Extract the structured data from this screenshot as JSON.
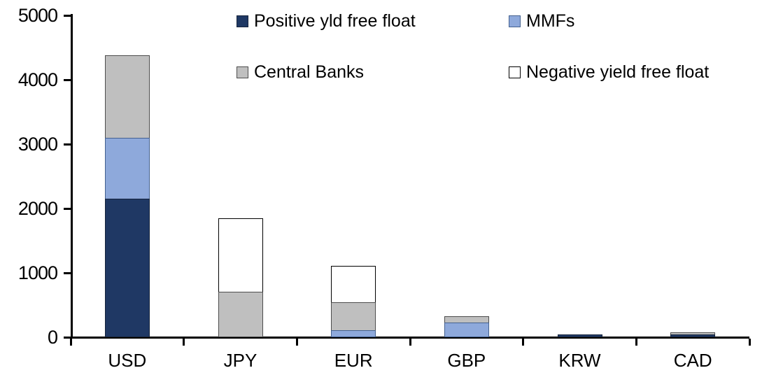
{
  "chart_data": {
    "type": "bar",
    "stacked": true,
    "title": "",
    "xlabel": "",
    "ylabel": "",
    "categories": [
      "USD",
      "JPY",
      "EUR",
      "GBP",
      "KRW",
      "CAD"
    ],
    "series": [
      {
        "name": "Positive yld free float",
        "color": "#1F3864",
        "border_color": "#16243C",
        "values": [
          2150,
          0,
          0,
          0,
          45,
          40
        ]
      },
      {
        "name": "MMFs",
        "color": "#8EA9DB",
        "border_color": "#44618F",
        "values": [
          950,
          0,
          110,
          225,
          0,
          0
        ]
      },
      {
        "name": "Central Banks",
        "color": "#BFBFBF",
        "border_color": "#4D4D4D",
        "values": [
          1280,
          710,
          430,
          105,
          0,
          35
        ]
      },
      {
        "name": "Negative yield free float",
        "color": "#FFFFFF",
        "border_color": "#000000",
        "values": [
          0,
          1140,
          570,
          0,
          0,
          0
        ]
      }
    ],
    "totals_by_category": [
      4380,
      1850,
      1110,
      330,
      45,
      75
    ],
    "ylim": [
      0,
      5000
    ],
    "yticks": [
      "0",
      "1000",
      "2000",
      "3000",
      "4000",
      "5000"
    ],
    "grid": false,
    "legend_position": "top",
    "axis_color": "#000000",
    "background_color": "#FFFFFF"
  }
}
